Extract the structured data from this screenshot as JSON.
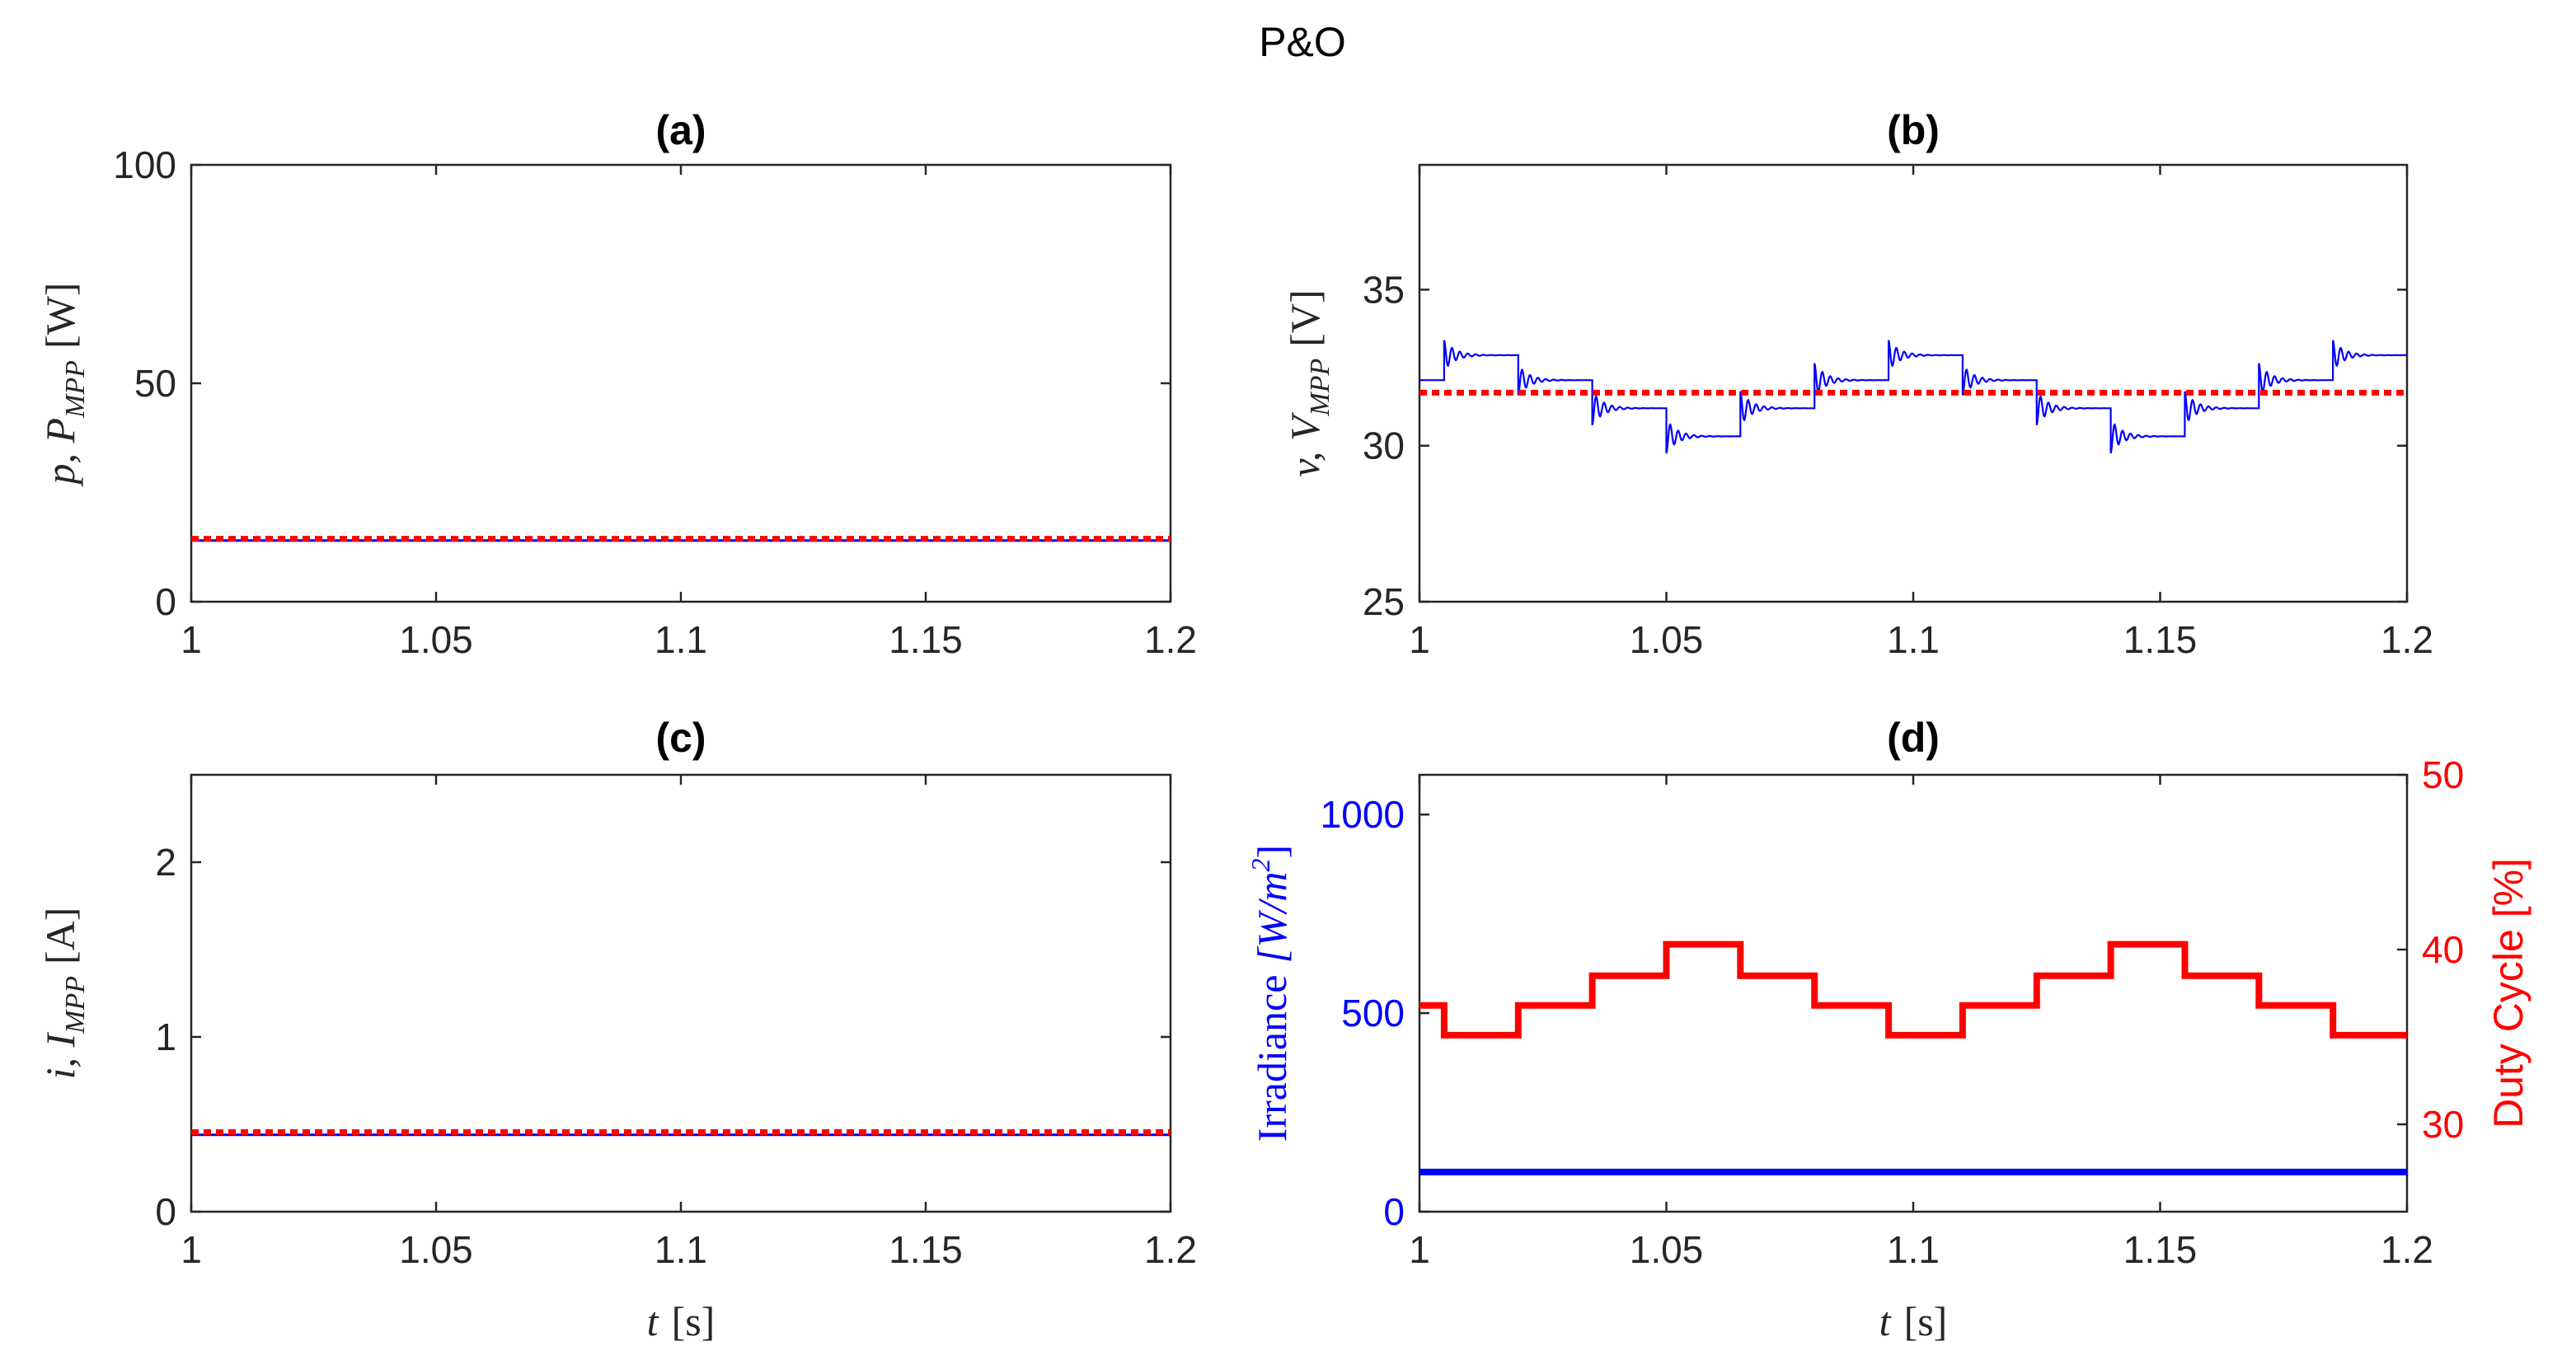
{
  "figure": {
    "suptitle": "P&O"
  },
  "chart_data": [
    {
      "id": "a",
      "type": "line",
      "title": "(a)",
      "ylabel": "p, P_MPP [W]",
      "ylabel_main": "p, P",
      "ylabel_sub": "MPP",
      "ylabel_unit": "[W]",
      "xlabel": "",
      "xlim": [
        1,
        1.2
      ],
      "ylim": [
        0,
        100
      ],
      "xticks": [
        1,
        1.05,
        1.1,
        1.15,
        1.2
      ],
      "xtick_labels": [
        "1",
        "1.05",
        "1.1",
        "1.15",
        "1.2"
      ],
      "yticks": [
        0,
        50,
        100
      ],
      "ytick_labels": [
        "0",
        "50",
        "100"
      ],
      "series": [
        {
          "name": "p",
          "color": "#0000ff",
          "style": "solid",
          "constant": 14.0
        },
        {
          "name": "P_MPP",
          "color": "#ff0000",
          "style": "dotted",
          "constant": 14.4
        }
      ]
    },
    {
      "id": "b",
      "type": "line",
      "title": "(b)",
      "ylabel": "v, V_MPP [V]",
      "ylabel_main": "v, V",
      "ylabel_sub": "MPP",
      "ylabel_unit": "[V]",
      "xlabel": "",
      "xlim": [
        1,
        1.2
      ],
      "ylim": [
        25,
        39
      ],
      "xticks": [
        1,
        1.05,
        1.1,
        1.15,
        1.2
      ],
      "xtick_labels": [
        "1",
        "1.05",
        "1.1",
        "1.15",
        "1.2"
      ],
      "yticks": [
        25,
        30,
        35
      ],
      "ytick_labels": [
        "25",
        "30",
        "35"
      ],
      "series": [
        {
          "name": "v",
          "color": "#0000ff",
          "style": "solid",
          "steps": {
            "t": [
              1.0,
              1.005,
              1.02,
              1.035,
              1.05,
              1.065,
              1.08,
              1.095,
              1.11,
              1.125,
              1.14,
              1.155,
              1.17,
              1.185,
              1.2
            ],
            "v": [
              32.1,
              32.9,
              32.1,
              31.2,
              30.3,
              31.2,
              32.1,
              32.9,
              32.1,
              31.2,
              30.3,
              31.2,
              32.1,
              32.9
            ]
          }
        },
        {
          "name": "V_MPP",
          "color": "#ff0000",
          "style": "dotted",
          "constant": 31.7
        }
      ]
    },
    {
      "id": "c",
      "type": "line",
      "title": "(c)",
      "ylabel": "i, I_MPP [A]",
      "ylabel_main": "i, I",
      "ylabel_sub": "MPP",
      "ylabel_unit": "[A]",
      "xlabel": "t [s]",
      "xlabel_var": "t",
      "xlabel_unit": "[s]",
      "xlim": [
        1,
        1.2
      ],
      "ylim": [
        0,
        2.5
      ],
      "xticks": [
        1,
        1.05,
        1.1,
        1.15,
        1.2
      ],
      "xtick_labels": [
        "1",
        "1.05",
        "1.1",
        "1.15",
        "1.2"
      ],
      "yticks": [
        0,
        1,
        2
      ],
      "ytick_labels": [
        "0",
        "1",
        "2"
      ],
      "series": [
        {
          "name": "i",
          "color": "#0000ff",
          "style": "solid",
          "constant": 0.44
        },
        {
          "name": "I_MPP",
          "color": "#ff0000",
          "style": "dotted",
          "constant": 0.455
        }
      ]
    },
    {
      "id": "d",
      "type": "line",
      "title": "(d)",
      "ylabel": "Irradiance [W/m^2]",
      "ylabel_word": "Irradiance",
      "ylabel_unit_open": "[W/m",
      "ylabel_unit_sup": "2",
      "ylabel_unit_close": "]",
      "ylabel_right": "Duty Cycle [%]",
      "xlabel": "t [s]",
      "xlabel_var": "t",
      "xlabel_unit": "[s]",
      "xlim": [
        1,
        1.2
      ],
      "ylim": [
        0,
        1100
      ],
      "ylim_right": [
        25,
        50
      ],
      "xticks": [
        1,
        1.05,
        1.1,
        1.15,
        1.2
      ],
      "xtick_labels": [
        "1",
        "1.05",
        "1.1",
        "1.15",
        "1.2"
      ],
      "yticks": [
        0,
        500,
        1000
      ],
      "ytick_labels": [
        "0",
        "500",
        "1000"
      ],
      "yticks_right": [
        30,
        40,
        50
      ],
      "ytick_labels_right": [
        "30",
        "40",
        "50"
      ],
      "left_color": "#0000ff",
      "right_color": "#ff0000",
      "series": [
        {
          "name": "Irradiance",
          "axis": "left",
          "color": "#0000ff",
          "style": "solid",
          "constant": 100
        },
        {
          "name": "Duty Cycle",
          "axis": "right",
          "color": "#ff0000",
          "style": "solid",
          "steps": {
            "t": [
              1.0,
              1.005,
              1.02,
              1.035,
              1.05,
              1.065,
              1.08,
              1.095,
              1.11,
              1.125,
              1.14,
              1.155,
              1.17,
              1.185,
              1.2
            ],
            "v": [
              36.8,
              35.1,
              36.8,
              38.5,
              40.3,
              38.5,
              36.8,
              35.1,
              36.8,
              38.5,
              40.3,
              38.5,
              36.8,
              35.1
            ]
          }
        }
      ]
    }
  ]
}
